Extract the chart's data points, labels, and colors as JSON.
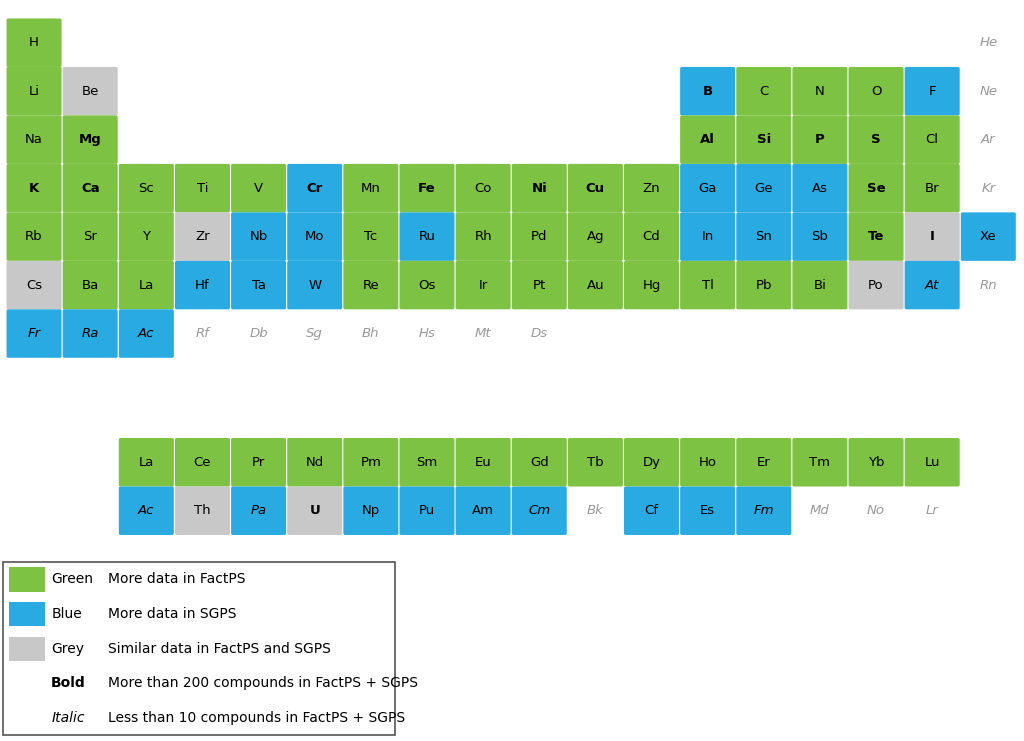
{
  "green": "#7DC242",
  "blue": "#29ABE2",
  "grey": "#C8C8C8",
  "elements": [
    {
      "symbol": "H",
      "row": 0,
      "col": 0,
      "color": "green",
      "style": "normal"
    },
    {
      "symbol": "He",
      "row": 0,
      "col": 17,
      "color": "none",
      "style": "italic"
    },
    {
      "symbol": "Li",
      "row": 1,
      "col": 0,
      "color": "green",
      "style": "normal"
    },
    {
      "symbol": "Be",
      "row": 1,
      "col": 1,
      "color": "grey",
      "style": "normal"
    },
    {
      "symbol": "B",
      "row": 1,
      "col": 12,
      "color": "blue",
      "style": "bold"
    },
    {
      "symbol": "C",
      "row": 1,
      "col": 13,
      "color": "green",
      "style": "normal"
    },
    {
      "symbol": "N",
      "row": 1,
      "col": 14,
      "color": "green",
      "style": "normal"
    },
    {
      "symbol": "O",
      "row": 1,
      "col": 15,
      "color": "green",
      "style": "normal"
    },
    {
      "symbol": "F",
      "row": 1,
      "col": 16,
      "color": "blue",
      "style": "normal"
    },
    {
      "symbol": "Ne",
      "row": 1,
      "col": 17,
      "color": "none",
      "style": "italic"
    },
    {
      "symbol": "Na",
      "row": 2,
      "col": 0,
      "color": "green",
      "style": "normal"
    },
    {
      "symbol": "Mg",
      "row": 2,
      "col": 1,
      "color": "green",
      "style": "bold"
    },
    {
      "symbol": "Al",
      "row": 2,
      "col": 12,
      "color": "green",
      "style": "bold"
    },
    {
      "symbol": "Si",
      "row": 2,
      "col": 13,
      "color": "green",
      "style": "bold"
    },
    {
      "symbol": "P",
      "row": 2,
      "col": 14,
      "color": "green",
      "style": "bold"
    },
    {
      "symbol": "S",
      "row": 2,
      "col": 15,
      "color": "green",
      "style": "bold"
    },
    {
      "symbol": "Cl",
      "row": 2,
      "col": 16,
      "color": "green",
      "style": "normal"
    },
    {
      "symbol": "Ar",
      "row": 2,
      "col": 17,
      "color": "none",
      "style": "italic"
    },
    {
      "symbol": "K",
      "row": 3,
      "col": 0,
      "color": "green",
      "style": "bold"
    },
    {
      "symbol": "Ca",
      "row": 3,
      "col": 1,
      "color": "green",
      "style": "bold"
    },
    {
      "symbol": "Sc",
      "row": 3,
      "col": 2,
      "color": "green",
      "style": "normal"
    },
    {
      "symbol": "Ti",
      "row": 3,
      "col": 3,
      "color": "green",
      "style": "normal"
    },
    {
      "symbol": "V",
      "row": 3,
      "col": 4,
      "color": "green",
      "style": "normal"
    },
    {
      "symbol": "Cr",
      "row": 3,
      "col": 5,
      "color": "blue",
      "style": "bold"
    },
    {
      "symbol": "Mn",
      "row": 3,
      "col": 6,
      "color": "green",
      "style": "normal"
    },
    {
      "symbol": "Fe",
      "row": 3,
      "col": 7,
      "color": "green",
      "style": "bold"
    },
    {
      "symbol": "Co",
      "row": 3,
      "col": 8,
      "color": "green",
      "style": "normal"
    },
    {
      "symbol": "Ni",
      "row": 3,
      "col": 9,
      "color": "green",
      "style": "bold"
    },
    {
      "symbol": "Cu",
      "row": 3,
      "col": 10,
      "color": "green",
      "style": "bold"
    },
    {
      "symbol": "Zn",
      "row": 3,
      "col": 11,
      "color": "green",
      "style": "normal"
    },
    {
      "symbol": "Ga",
      "row": 3,
      "col": 12,
      "color": "blue",
      "style": "normal"
    },
    {
      "symbol": "Ge",
      "row": 3,
      "col": 13,
      "color": "blue",
      "style": "normal"
    },
    {
      "symbol": "As",
      "row": 3,
      "col": 14,
      "color": "blue",
      "style": "normal"
    },
    {
      "symbol": "Se",
      "row": 3,
      "col": 15,
      "color": "green",
      "style": "bold"
    },
    {
      "symbol": "Br",
      "row": 3,
      "col": 16,
      "color": "green",
      "style": "normal"
    },
    {
      "symbol": "Kr",
      "row": 3,
      "col": 17,
      "color": "none",
      "style": "italic"
    },
    {
      "symbol": "Rb",
      "row": 4,
      "col": 0,
      "color": "green",
      "style": "normal"
    },
    {
      "symbol": "Sr",
      "row": 4,
      "col": 1,
      "color": "green",
      "style": "normal"
    },
    {
      "symbol": "Y",
      "row": 4,
      "col": 2,
      "color": "green",
      "style": "normal"
    },
    {
      "symbol": "Zr",
      "row": 4,
      "col": 3,
      "color": "grey",
      "style": "normal"
    },
    {
      "symbol": "Nb",
      "row": 4,
      "col": 4,
      "color": "blue",
      "style": "normal"
    },
    {
      "symbol": "Mo",
      "row": 4,
      "col": 5,
      "color": "blue",
      "style": "normal"
    },
    {
      "symbol": "Tc",
      "row": 4,
      "col": 6,
      "color": "green",
      "style": "normal"
    },
    {
      "symbol": "Ru",
      "row": 4,
      "col": 7,
      "color": "blue",
      "style": "normal"
    },
    {
      "symbol": "Rh",
      "row": 4,
      "col": 8,
      "color": "green",
      "style": "normal"
    },
    {
      "symbol": "Pd",
      "row": 4,
      "col": 9,
      "color": "green",
      "style": "normal"
    },
    {
      "symbol": "Ag",
      "row": 4,
      "col": 10,
      "color": "green",
      "style": "normal"
    },
    {
      "symbol": "Cd",
      "row": 4,
      "col": 11,
      "color": "green",
      "style": "normal"
    },
    {
      "symbol": "In",
      "row": 4,
      "col": 12,
      "color": "blue",
      "style": "normal"
    },
    {
      "symbol": "Sn",
      "row": 4,
      "col": 13,
      "color": "blue",
      "style": "normal"
    },
    {
      "symbol": "Sb",
      "row": 4,
      "col": 14,
      "color": "blue",
      "style": "normal"
    },
    {
      "symbol": "Te",
      "row": 4,
      "col": 15,
      "color": "green",
      "style": "bold"
    },
    {
      "symbol": "I",
      "row": 4,
      "col": 16,
      "color": "grey",
      "style": "bold"
    },
    {
      "symbol": "Xe",
      "row": 4,
      "col": 17,
      "color": "blue",
      "style": "normal"
    },
    {
      "symbol": "Cs",
      "row": 5,
      "col": 0,
      "color": "grey",
      "style": "normal"
    },
    {
      "symbol": "Ba",
      "row": 5,
      "col": 1,
      "color": "green",
      "style": "normal"
    },
    {
      "symbol": "La",
      "row": 5,
      "col": 2,
      "color": "green",
      "style": "normal"
    },
    {
      "symbol": "Hf",
      "row": 5,
      "col": 3,
      "color": "blue",
      "style": "normal"
    },
    {
      "symbol": "Ta",
      "row": 5,
      "col": 4,
      "color": "blue",
      "style": "normal"
    },
    {
      "symbol": "W",
      "row": 5,
      "col": 5,
      "color": "blue",
      "style": "normal"
    },
    {
      "symbol": "Re",
      "row": 5,
      "col": 6,
      "color": "green",
      "style": "normal"
    },
    {
      "symbol": "Os",
      "row": 5,
      "col": 7,
      "color": "green",
      "style": "normal"
    },
    {
      "symbol": "Ir",
      "row": 5,
      "col": 8,
      "color": "green",
      "style": "normal"
    },
    {
      "symbol": "Pt",
      "row": 5,
      "col": 9,
      "color": "green",
      "style": "normal"
    },
    {
      "symbol": "Au",
      "row": 5,
      "col": 10,
      "color": "green",
      "style": "normal"
    },
    {
      "symbol": "Hg",
      "row": 5,
      "col": 11,
      "color": "green",
      "style": "normal"
    },
    {
      "symbol": "Tl",
      "row": 5,
      "col": 12,
      "color": "green",
      "style": "normal"
    },
    {
      "symbol": "Pb",
      "row": 5,
      "col": 13,
      "color": "green",
      "style": "normal"
    },
    {
      "symbol": "Bi",
      "row": 5,
      "col": 14,
      "color": "green",
      "style": "normal"
    },
    {
      "symbol": "Po",
      "row": 5,
      "col": 15,
      "color": "grey",
      "style": "normal"
    },
    {
      "symbol": "At",
      "row": 5,
      "col": 16,
      "color": "blue",
      "style": "italic"
    },
    {
      "symbol": "Rn",
      "row": 5,
      "col": 17,
      "color": "none",
      "style": "italic"
    },
    {
      "symbol": "Fr",
      "row": 6,
      "col": 0,
      "color": "blue",
      "style": "italic"
    },
    {
      "symbol": "Ra",
      "row": 6,
      "col": 1,
      "color": "blue",
      "style": "italic"
    },
    {
      "symbol": "Ac",
      "row": 6,
      "col": 2,
      "color": "blue",
      "style": "italic"
    },
    {
      "symbol": "Rf",
      "row": 6,
      "col": 3,
      "color": "none",
      "style": "italic"
    },
    {
      "symbol": "Db",
      "row": 6,
      "col": 4,
      "color": "none",
      "style": "italic"
    },
    {
      "symbol": "Sg",
      "row": 6,
      "col": 5,
      "color": "none",
      "style": "italic"
    },
    {
      "symbol": "Bh",
      "row": 6,
      "col": 6,
      "color": "none",
      "style": "italic"
    },
    {
      "symbol": "Hs",
      "row": 6,
      "col": 7,
      "color": "none",
      "style": "italic"
    },
    {
      "symbol": "Mt",
      "row": 6,
      "col": 8,
      "color": "none",
      "style": "italic"
    },
    {
      "symbol": "Ds",
      "row": 6,
      "col": 9,
      "color": "none",
      "style": "italic"
    },
    {
      "symbol": "La",
      "row": 8,
      "col": 2,
      "color": "green",
      "style": "normal"
    },
    {
      "symbol": "Ce",
      "row": 8,
      "col": 3,
      "color": "green",
      "style": "normal"
    },
    {
      "symbol": "Pr",
      "row": 8,
      "col": 4,
      "color": "green",
      "style": "normal"
    },
    {
      "symbol": "Nd",
      "row": 8,
      "col": 5,
      "color": "green",
      "style": "normal"
    },
    {
      "symbol": "Pm",
      "row": 8,
      "col": 6,
      "color": "green",
      "style": "normal"
    },
    {
      "symbol": "Sm",
      "row": 8,
      "col": 7,
      "color": "green",
      "style": "normal"
    },
    {
      "symbol": "Eu",
      "row": 8,
      "col": 8,
      "color": "green",
      "style": "normal"
    },
    {
      "symbol": "Gd",
      "row": 8,
      "col": 9,
      "color": "green",
      "style": "normal"
    },
    {
      "symbol": "Tb",
      "row": 8,
      "col": 10,
      "color": "green",
      "style": "normal"
    },
    {
      "symbol": "Dy",
      "row": 8,
      "col": 11,
      "color": "green",
      "style": "normal"
    },
    {
      "symbol": "Ho",
      "row": 8,
      "col": 12,
      "color": "green",
      "style": "normal"
    },
    {
      "symbol": "Er",
      "row": 8,
      "col": 13,
      "color": "green",
      "style": "normal"
    },
    {
      "symbol": "Tm",
      "row": 8,
      "col": 14,
      "color": "green",
      "style": "normal"
    },
    {
      "symbol": "Yb",
      "row": 8,
      "col": 15,
      "color": "green",
      "style": "normal"
    },
    {
      "symbol": "Lu",
      "row": 8,
      "col": 16,
      "color": "green",
      "style": "normal"
    },
    {
      "symbol": "Ac",
      "row": 9,
      "col": 2,
      "color": "blue",
      "style": "italic"
    },
    {
      "symbol": "Th",
      "row": 9,
      "col": 3,
      "color": "grey",
      "style": "normal"
    },
    {
      "symbol": "Pa",
      "row": 9,
      "col": 4,
      "color": "blue",
      "style": "italic"
    },
    {
      "symbol": "U",
      "row": 9,
      "col": 5,
      "color": "grey",
      "style": "bold"
    },
    {
      "symbol": "Np",
      "row": 9,
      "col": 6,
      "color": "blue",
      "style": "normal"
    },
    {
      "symbol": "Pu",
      "row": 9,
      "col": 7,
      "color": "blue",
      "style": "normal"
    },
    {
      "symbol": "Am",
      "row": 9,
      "col": 8,
      "color": "blue",
      "style": "normal"
    },
    {
      "symbol": "Cm",
      "row": 9,
      "col": 9,
      "color": "blue",
      "style": "italic"
    },
    {
      "symbol": "Bk",
      "row": 9,
      "col": 10,
      "color": "none",
      "style": "italic"
    },
    {
      "symbol": "Cf",
      "row": 9,
      "col": 11,
      "color": "blue",
      "style": "normal"
    },
    {
      "symbol": "Es",
      "row": 9,
      "col": 12,
      "color": "blue",
      "style": "normal"
    },
    {
      "symbol": "Fm",
      "row": 9,
      "col": 13,
      "color": "blue",
      "style": "italic"
    },
    {
      "symbol": "Md",
      "row": 9,
      "col": 14,
      "color": "none",
      "style": "italic"
    },
    {
      "symbol": "No",
      "row": 9,
      "col": 15,
      "color": "none",
      "style": "italic"
    },
    {
      "symbol": "Lr",
      "row": 9,
      "col": 16,
      "color": "none",
      "style": "italic"
    }
  ],
  "legend_entries": [
    {
      "color": "green",
      "label": "Green",
      "label_style": "normal",
      "label_weight": "normal",
      "desc": "More data in FactPS"
    },
    {
      "color": "blue",
      "label": "Blue",
      "label_style": "normal",
      "label_weight": "normal",
      "desc": "More data in SGPS"
    },
    {
      "color": "grey",
      "label": "Grey",
      "label_style": "normal",
      "label_weight": "normal",
      "desc": "Similar data in FactPS and SGPS"
    },
    {
      "color": "none",
      "label": "Bold",
      "label_style": "normal",
      "label_weight": "bold",
      "desc": "More than 200 compounds in FactPS + SGPS"
    },
    {
      "color": "none",
      "label": "Italic",
      "label_style": "italic",
      "label_weight": "normal",
      "desc": "Less than 10 compounds in FactPS + SGPS"
    }
  ]
}
